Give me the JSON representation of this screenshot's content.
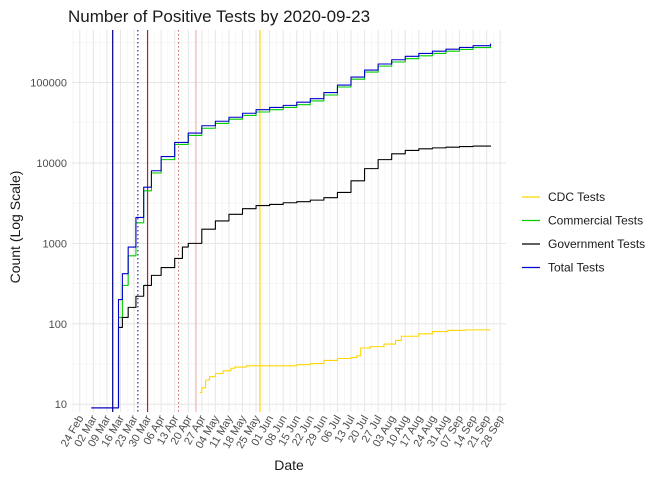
{
  "chart_data": {
    "type": "line",
    "title": "Number of Positive Tests by  2020-09-23",
    "xlabel": "Date",
    "ylabel": "Count (Log Scale)",
    "y_scale": "log",
    "ylim": [
      8,
      450000
    ],
    "xlim": [
      "2020-02-20",
      "2020-10-01"
    ],
    "grid": true,
    "legend_position": "right",
    "x_ticks": [
      "2020-02-24",
      "2020-03-02",
      "2020-03-09",
      "2020-03-16",
      "2020-03-23",
      "2020-03-30",
      "2020-04-06",
      "2020-04-13",
      "2020-04-20",
      "2020-04-27",
      "2020-05-04",
      "2020-05-11",
      "2020-05-18",
      "2020-05-25",
      "2020-06-01",
      "2020-06-08",
      "2020-06-15",
      "2020-06-22",
      "2020-06-29",
      "2020-07-06",
      "2020-07-13",
      "2020-07-20",
      "2020-07-27",
      "2020-08-03",
      "2020-08-10",
      "2020-08-17",
      "2020-08-24",
      "2020-08-31",
      "2020-09-07",
      "2020-09-14",
      "2020-09-21",
      "2020-09-28"
    ],
    "x_tick_labels": [
      "24 Feb",
      "02 Mar",
      "09 Mar",
      "16 Mar",
      "23 Mar",
      "30 Mar",
      "06 Apr",
      "13 Apr",
      "20 Apr",
      "27 Apr",
      "04 May",
      "11 May",
      "18 May",
      "25 May",
      "01 Jun",
      "08 Jun",
      "15 Jun",
      "22 Jun",
      "29 Jun",
      "06 Jul",
      "13 Jul",
      "20 Jul",
      "27 Jul",
      "03 Aug",
      "10 Aug",
      "17 Aug",
      "24 Aug",
      "31 Aug",
      "07 Sep",
      "14 Sep",
      "21 Sep",
      "28 Sep"
    ],
    "y_ticks": [
      10,
      100,
      1000,
      10000,
      100000
    ],
    "y_tick_labels": [
      "10",
      "100",
      "1000",
      "10000",
      "100000"
    ],
    "vertical_lines": [
      {
        "date": "2020-03-12",
        "color": "#00008b",
        "style": "solid"
      },
      {
        "date": "2020-03-25",
        "color": "#000080",
        "style": "dotted"
      },
      {
        "date": "2020-03-30",
        "color": "#b22222",
        "style": "solid"
      },
      {
        "date": "2020-04-15",
        "color": "#cd5c5c",
        "style": "dotted"
      },
      {
        "date": "2020-04-24",
        "color": "#f4b6b6",
        "style": "solid"
      },
      {
        "date": "2020-05-27",
        "color": "#ffd700",
        "style": "solid"
      }
    ],
    "series": [
      {
        "name": "CDC Tests",
        "color": "#ffd700",
        "points": [
          [
            "2020-04-26",
            14
          ],
          [
            "2020-04-27",
            16
          ],
          [
            "2020-04-29",
            20
          ],
          [
            "2020-05-01",
            22
          ],
          [
            "2020-05-04",
            24
          ],
          [
            "2020-05-08",
            26
          ],
          [
            "2020-05-12",
            28
          ],
          [
            "2020-05-14",
            29
          ],
          [
            "2020-05-20",
            30
          ],
          [
            "2020-06-01",
            30
          ],
          [
            "2020-06-10",
            30
          ],
          [
            "2020-06-15",
            31
          ],
          [
            "2020-06-22",
            32
          ],
          [
            "2020-06-29",
            35
          ],
          [
            "2020-07-06",
            37
          ],
          [
            "2020-07-13",
            38
          ],
          [
            "2020-07-16",
            40
          ],
          [
            "2020-07-18",
            50
          ],
          [
            "2020-07-23",
            52
          ],
          [
            "2020-07-30",
            56
          ],
          [
            "2020-08-05",
            62
          ],
          [
            "2020-08-08",
            70
          ],
          [
            "2020-08-17",
            75
          ],
          [
            "2020-08-24",
            80
          ],
          [
            "2020-09-01",
            83
          ],
          [
            "2020-09-10",
            84
          ],
          [
            "2020-09-23",
            84
          ]
        ]
      },
      {
        "name": "Commercial Tests",
        "color": "#00cc00",
        "points": [
          [
            "2020-03-15",
            120
          ],
          [
            "2020-03-17",
            300
          ],
          [
            "2020-03-20",
            700
          ],
          [
            "2020-03-24",
            1800
          ],
          [
            "2020-03-28",
            4500
          ],
          [
            "2020-04-01",
            7500
          ],
          [
            "2020-04-06",
            11000
          ],
          [
            "2020-04-13",
            17000
          ],
          [
            "2020-04-20",
            22000
          ],
          [
            "2020-04-27",
            27000
          ],
          [
            "2020-05-04",
            31000
          ],
          [
            "2020-05-11",
            35000
          ],
          [
            "2020-05-18",
            39000
          ],
          [
            "2020-05-25",
            43000
          ],
          [
            "2020-06-01",
            46000
          ],
          [
            "2020-06-08",
            49000
          ],
          [
            "2020-06-15",
            53000
          ],
          [
            "2020-06-22",
            59000
          ],
          [
            "2020-06-29",
            70000
          ],
          [
            "2020-07-06",
            88000
          ],
          [
            "2020-07-13",
            110000
          ],
          [
            "2020-07-20",
            135000
          ],
          [
            "2020-07-27",
            160000
          ],
          [
            "2020-08-03",
            180000
          ],
          [
            "2020-08-10",
            198000
          ],
          [
            "2020-08-17",
            215000
          ],
          [
            "2020-08-24",
            230000
          ],
          [
            "2020-08-31",
            245000
          ],
          [
            "2020-09-07",
            258000
          ],
          [
            "2020-09-14",
            272000
          ],
          [
            "2020-09-23",
            290000
          ]
        ]
      },
      {
        "name": "Government Tests",
        "color": "#000000",
        "points": [
          [
            "2020-03-01",
            9
          ],
          [
            "2020-03-08",
            9
          ],
          [
            "2020-03-13",
            9
          ],
          [
            "2020-03-15",
            90
          ],
          [
            "2020-03-17",
            120
          ],
          [
            "2020-03-20",
            160
          ],
          [
            "2020-03-24",
            220
          ],
          [
            "2020-03-28",
            300
          ],
          [
            "2020-04-01",
            400
          ],
          [
            "2020-04-06",
            500
          ],
          [
            "2020-04-13",
            650
          ],
          [
            "2020-04-17",
            900
          ],
          [
            "2020-04-20",
            1000
          ],
          [
            "2020-04-27",
            1500
          ],
          [
            "2020-05-04",
            1900
          ],
          [
            "2020-05-11",
            2300
          ],
          [
            "2020-05-18",
            2700
          ],
          [
            "2020-05-25",
            2950
          ],
          [
            "2020-06-01",
            3050
          ],
          [
            "2020-06-08",
            3200
          ],
          [
            "2020-06-15",
            3300
          ],
          [
            "2020-06-22",
            3450
          ],
          [
            "2020-06-29",
            3700
          ],
          [
            "2020-07-06",
            4300
          ],
          [
            "2020-07-13",
            6000
          ],
          [
            "2020-07-20",
            8500
          ],
          [
            "2020-07-27",
            11000
          ],
          [
            "2020-08-03",
            13000
          ],
          [
            "2020-08-10",
            14300
          ],
          [
            "2020-08-17",
            15000
          ],
          [
            "2020-08-24",
            15400
          ],
          [
            "2020-08-31",
            15700
          ],
          [
            "2020-09-07",
            16000
          ],
          [
            "2020-09-14",
            16200
          ],
          [
            "2020-09-23",
            16500
          ]
        ]
      },
      {
        "name": "Total Tests",
        "color": "#0000cc",
        "points": [
          [
            "2020-03-01",
            9
          ],
          [
            "2020-03-08",
            9
          ],
          [
            "2020-03-13",
            9
          ],
          [
            "2020-03-14",
            9
          ],
          [
            "2020-03-15",
            200
          ],
          [
            "2020-03-17",
            420
          ],
          [
            "2020-03-20",
            900
          ],
          [
            "2020-03-24",
            2100
          ],
          [
            "2020-03-28",
            5000
          ],
          [
            "2020-04-01",
            8000
          ],
          [
            "2020-04-06",
            12000
          ],
          [
            "2020-04-13",
            18000
          ],
          [
            "2020-04-20",
            23500
          ],
          [
            "2020-04-27",
            29000
          ],
          [
            "2020-05-04",
            33000
          ],
          [
            "2020-05-11",
            37000
          ],
          [
            "2020-05-18",
            41500
          ],
          [
            "2020-05-25",
            46000
          ],
          [
            "2020-06-01",
            49000
          ],
          [
            "2020-06-08",
            52000
          ],
          [
            "2020-06-15",
            57000
          ],
          [
            "2020-06-22",
            63000
          ],
          [
            "2020-06-29",
            75000
          ],
          [
            "2020-07-06",
            93000
          ],
          [
            "2020-07-13",
            117000
          ],
          [
            "2020-07-20",
            143000
          ],
          [
            "2020-07-27",
            170000
          ],
          [
            "2020-08-03",
            192000
          ],
          [
            "2020-08-10",
            212000
          ],
          [
            "2020-08-17",
            230000
          ],
          [
            "2020-08-24",
            245000
          ],
          [
            "2020-08-31",
            260000
          ],
          [
            "2020-09-07",
            273000
          ],
          [
            "2020-09-14",
            287000
          ],
          [
            "2020-09-23",
            305000
          ]
        ]
      }
    ]
  }
}
